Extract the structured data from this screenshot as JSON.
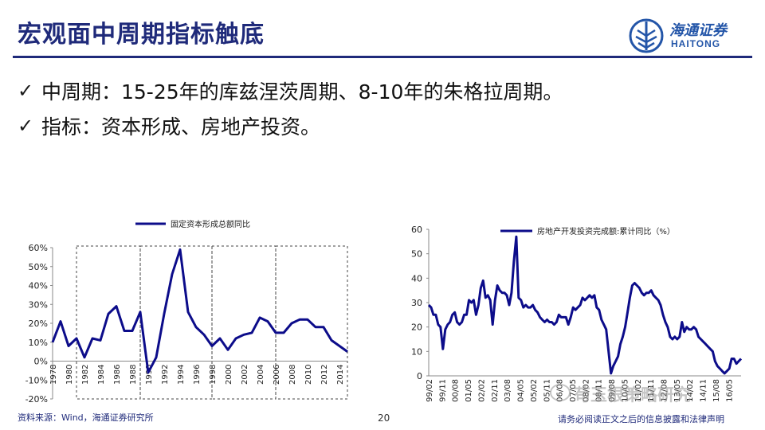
{
  "slide": {
    "title": "宏观面中周期指标触底",
    "bullets": [
      "中周期：15-25年的库兹涅茨周期、8-10年的朱格拉周期。",
      "指标：资本形成、房地产投资。"
    ],
    "check_glyph": "✓"
  },
  "logo": {
    "cn": "海通证券",
    "en": "HAITONG",
    "icon": "haitong-logo-icon",
    "color": "#2355a8"
  },
  "footer": {
    "source": "资料来源：Wind，海通证券研究所",
    "page": "20",
    "disclaimer": "请务必阅读正文之后的信息披露和法律声明",
    "watermark": "苟玉根策略研究"
  },
  "colors": {
    "title": "#1f2a7a",
    "series": "#0c0c8a",
    "box_border": "#444444"
  },
  "chart_data": [
    {
      "type": "line",
      "legend": "固定资本形成总额同比",
      "legend_position": "top",
      "x_ticks": [
        "1978",
        "1980",
        "1982",
        "1984",
        "1986",
        "1988",
        "1990",
        "1992",
        "1994",
        "1996",
        "1998",
        "2000",
        "2002",
        "2004",
        "2006",
        "2008",
        "2010",
        "2012",
        "2014"
      ],
      "y_ticks": [
        "-20%",
        "-10%",
        "0%",
        "10%",
        "20%",
        "30%",
        "40%",
        "50%",
        "60%"
      ],
      "ylim": [
        -20,
        60
      ],
      "xlim": [
        1978,
        2015
      ],
      "highlight_spans": [
        [
          1981,
          1989
        ],
        [
          1989,
          1998
        ],
        [
          1998,
          2006
        ],
        [
          2006,
          2015
        ]
      ],
      "series": [
        {
          "x": [
            1978,
            1979,
            1980,
            1981,
            1982,
            1983,
            1984,
            1985,
            1986,
            1987,
            1988,
            1989,
            1990,
            1991,
            1992,
            1993,
            1994,
            1995,
            1996,
            1997,
            1998,
            1999,
            2000,
            2001,
            2002,
            2003,
            2004,
            2005,
            2006,
            2007,
            2008,
            2009,
            2010,
            2011,
            2012,
            2013,
            2014,
            2015
          ],
          "values": [
            10,
            21,
            8,
            12,
            2,
            12,
            11,
            25,
            29,
            16,
            16,
            26,
            -6,
            2,
            25,
            46,
            59,
            26,
            18,
            14,
            8,
            12,
            6,
            12,
            14,
            15,
            23,
            21,
            15,
            15,
            20,
            22,
            22,
            18,
            18,
            11,
            8,
            5
          ]
        }
      ]
    },
    {
      "type": "line",
      "legend": "房地产开发投资完成额:累计同比（%）",
      "legend_position": "top-left",
      "x_ticks": [
        "99/02",
        "99/11",
        "00/08",
        "01/05",
        "02/02",
        "02/11",
        "03/08",
        "04/05",
        "05/02",
        "05/11",
        "06/08",
        "07/05",
        "08/02",
        "08/11",
        "09/08",
        "10/05",
        "11/02",
        "11/11",
        "12/08",
        "13/05",
        "14/02",
        "14/11",
        "15/08",
        "16/05"
      ],
      "y_ticks": [
        "0",
        "10",
        "20",
        "30",
        "40",
        "50",
        "60"
      ],
      "ylim": [
        0,
        60
      ],
      "series": [
        {
          "values": [
            29,
            28,
            25,
            25,
            21,
            20,
            11,
            19,
            21,
            22,
            25,
            26,
            22,
            21,
            22,
            25,
            25,
            31,
            30,
            31,
            25,
            29,
            36,
            39,
            32,
            33,
            31,
            21,
            31,
            37,
            35,
            34,
            34,
            33,
            29,
            34,
            47,
            57,
            32,
            31,
            28,
            29,
            28,
            28,
            29,
            27,
            26,
            24,
            23,
            22,
            23,
            22,
            22,
            21,
            22,
            25,
            24,
            24,
            24,
            21,
            24,
            28,
            27,
            28,
            29,
            32,
            31,
            32,
            33,
            32,
            33,
            28,
            27,
            23,
            21,
            19,
            10,
            1,
            4,
            6,
            8,
            13,
            16,
            20,
            26,
            32,
            37,
            38,
            37,
            36,
            34,
            33,
            34,
            34,
            35,
            33,
            32,
            31,
            29,
            25,
            22,
            20,
            16,
            15,
            16,
            15,
            16,
            22,
            18,
            20,
            19,
            19,
            20,
            19,
            16,
            15,
            14,
            13,
            12,
            11,
            10,
            6,
            4,
            3,
            2,
            1,
            2,
            3,
            7,
            7,
            5,
            6,
            7
          ]
        }
      ]
    }
  ]
}
